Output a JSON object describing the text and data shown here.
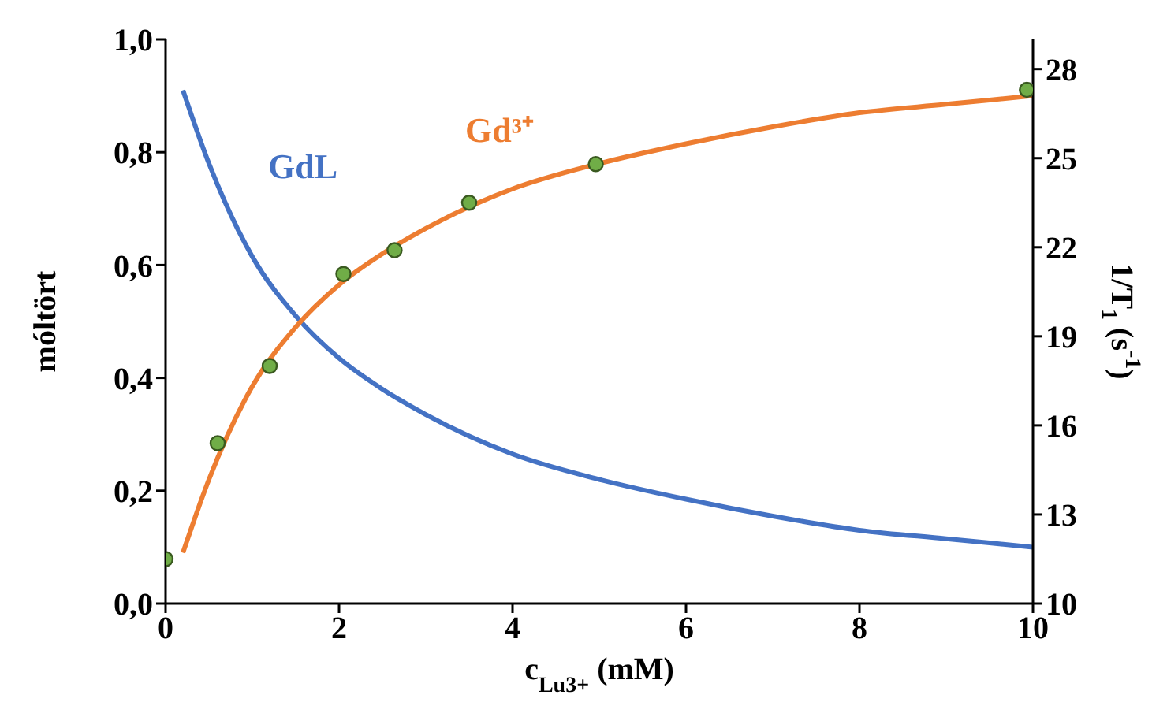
{
  "chart_data": {
    "type": "line",
    "xlabel": "c$_{Lu3+}$ (mM)",
    "ylabel": "móltört",
    "y2label": "1/T$_{1}$ (s$^{-1}$)",
    "xlim": [
      0,
      10
    ],
    "xticks": [
      0,
      2,
      4,
      6,
      8,
      10
    ],
    "ylim": [
      0,
      1
    ],
    "yticks": [
      {
        "value": 0,
        "label": "0,0"
      },
      {
        "value": 0.2,
        "label": "0,2"
      },
      {
        "value": 0.4,
        "label": "0,4"
      },
      {
        "value": 0.6,
        "label": "0,6"
      },
      {
        "value": 0.8,
        "label": "0,8"
      },
      {
        "value": 1,
        "label": "1,0"
      }
    ],
    "y2lim": [
      10,
      29
    ],
    "y2ticks": [
      10,
      13,
      16,
      19,
      22,
      25,
      28
    ],
    "grid": false,
    "legend": false,
    "series": [
      {
        "name": "GdL",
        "color": "#4472c4",
        "marker": "none",
        "x": [
          0.2,
          0.5,
          1,
          1.5,
          2,
          2.5,
          3,
          4,
          5,
          6,
          7,
          8,
          9,
          10
        ],
        "values": [
          0.91,
          0.78,
          0.615,
          0.51,
          0.435,
          0.38,
          0.335,
          0.265,
          0.22,
          0.185,
          0.155,
          0.13,
          0.115,
          0.1
        ]
      },
      {
        "name": "Gd³⁺",
        "color": "#ed7d31",
        "marker": "none",
        "x": [
          0.2,
          0.5,
          1,
          1.5,
          2,
          2.5,
          3,
          4,
          5,
          6,
          7,
          8,
          9,
          10
        ],
        "values": [
          0.09,
          0.22,
          0.385,
          0.49,
          0.565,
          0.62,
          0.665,
          0.735,
          0.78,
          0.815,
          0.845,
          0.87,
          0.885,
          0.9
        ]
      },
      {
        "color": "#70ad47",
        "type": "scatter",
        "axis": "y2",
        "marker": "circle",
        "x": [
          0,
          0.6,
          1.2,
          2.05,
          2.64,
          3.5,
          4.96,
          9.93
        ],
        "values": [
          11.5,
          15.4,
          18.0,
          21.1,
          21.9,
          23.5,
          24.8,
          27.3
        ]
      }
    ]
  }
}
